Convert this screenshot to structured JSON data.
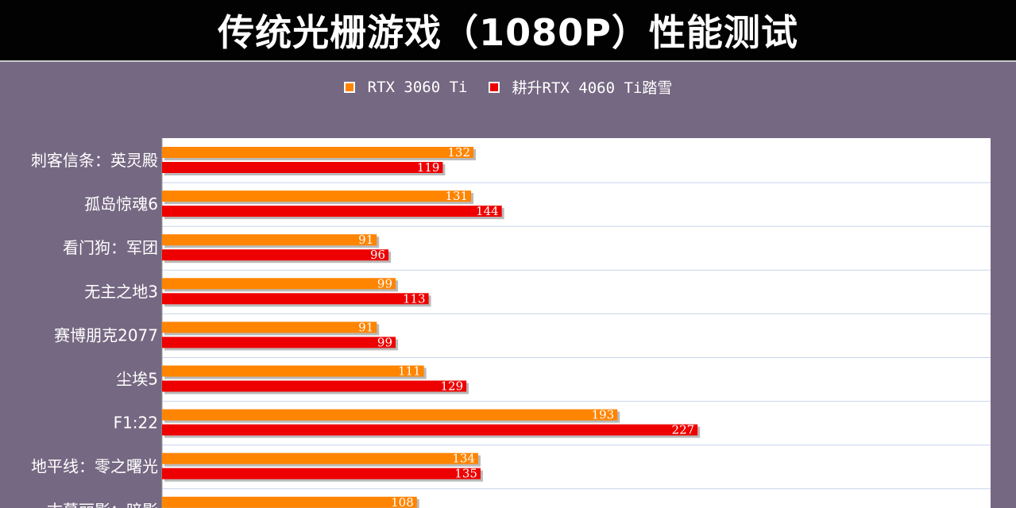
{
  "chart_data": {
    "type": "bar",
    "orientation": "horizontal",
    "title": "传统光栅游戏（1080P）性能测试",
    "categories": [
      "刺客信条：英灵殿",
      "孤岛惊魂6",
      "看门狗：军团",
      "无主之地3",
      "赛博朋克2077",
      "尘埃5",
      "F1:22",
      "地平线：零之曙光",
      "古墓丽影：暗影"
    ],
    "series": [
      {
        "name": "RTX 3060 Ti",
        "color": "#ff8400",
        "values": [
          132,
          131,
          91,
          99,
          91,
          111,
          193,
          134,
          108
        ]
      },
      {
        "name": "耕升RTX 4060 Ti踏雪",
        "color": "#ee0000",
        "values": [
          119,
          144,
          96,
          113,
          99,
          129,
          227,
          135,
          null
        ]
      }
    ],
    "xlim": [
      0,
      350
    ],
    "grid": "horizontal",
    "legend_position": "top-center",
    "plot_background": "#ffffff"
  }
}
